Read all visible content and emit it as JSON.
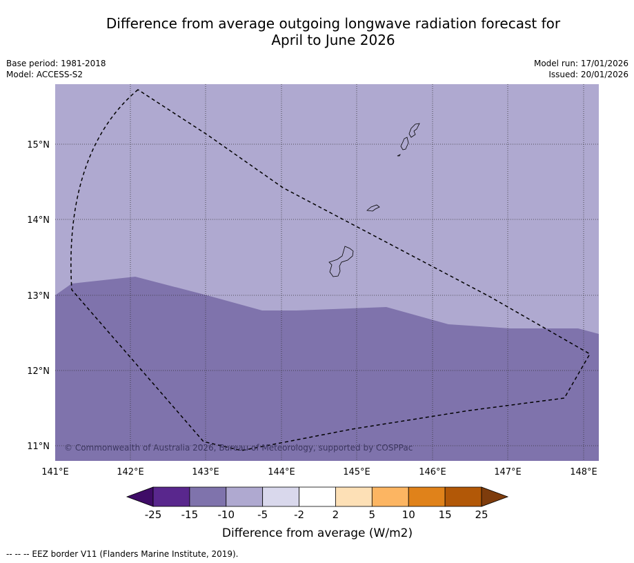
{
  "title": {
    "line1": "Difference from average outgoing longwave radiation forecast for",
    "line2": "April to June 2026"
  },
  "meta": {
    "base_period": "Base period: 1981-2018",
    "model": "Model: ACCESS-S2",
    "model_run": "Model run: 17/01/2026",
    "issued": "Issued: 20/01/2026"
  },
  "map": {
    "lat_labels": [
      "11°N",
      "12°N",
      "13°N",
      "14°N",
      "15°N"
    ],
    "lon_labels": [
      "141°E",
      "142°E",
      "143°E",
      "144°E",
      "145°E",
      "146°E",
      "147°E",
      "148°E"
    ],
    "copyright": "© Commonwealth of Australia 2026, Bureau of Meteorology, supported by COSPPac",
    "colors": {
      "light_anomaly": "#afa9d0",
      "dark_anomaly": "#7f73ac"
    }
  },
  "legend": {
    "ticks": [
      "-25",
      "-15",
      "-10",
      "-5",
      "-2",
      "2",
      "5",
      "10",
      "15",
      "25"
    ],
    "colors": [
      "#3f0c67",
      "#59278d",
      "#7f73ac",
      "#afa9d0",
      "#d9d8ec",
      "#ffffff",
      "#fde0b6",
      "#fcb562",
      "#e0821a",
      "#b25807",
      "#7e3c0c"
    ],
    "label": "Difference from average (W/m2)"
  },
  "footnote": "--  --  -- EEZ border V11 (Flanders Marine Institute, 2019)."
}
